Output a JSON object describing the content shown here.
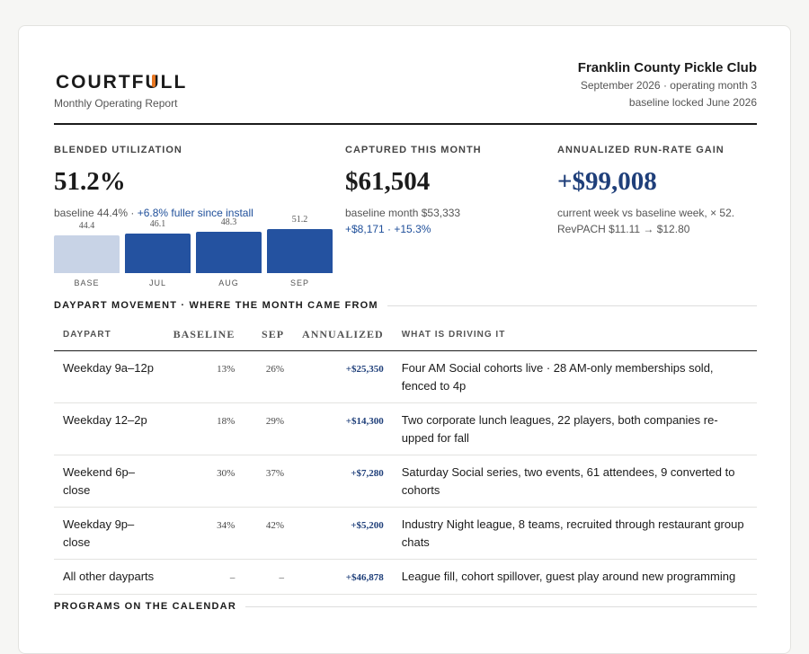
{
  "brand": {
    "logo_prefix": "COURTF",
    "logo_u": "U",
    "logo_suffix": "LL",
    "report_type": "Monthly Operating Report"
  },
  "club": {
    "name": "Franklin County Pickle Club",
    "period": "September 2026 · operating month 3",
    "baseline": "baseline locked June 2026"
  },
  "kpis": {
    "utilization": {
      "label": "BLENDED UTILIZATION",
      "value": "51.2%",
      "sub_prefix": "baseline 44.4% · ",
      "sub_accent": "+6.8% fuller since install"
    },
    "captured": {
      "label": "CAPTURED THIS MONTH",
      "value": "$61,504",
      "sub_line1": "baseline month $53,333",
      "sub_line2": "+$8,171 · +15.3%"
    },
    "runrate": {
      "label": "ANNUALIZED RUN-RATE GAIN",
      "value": "+$99,008",
      "sub_line1": "current week vs baseline week, × 52.",
      "sub_line2": "RevPACH $11.11 → $12.80"
    }
  },
  "chart_data": {
    "type": "bar",
    "categories": [
      "BASE",
      "JUL",
      "AUG",
      "SEP"
    ],
    "values": [
      44.4,
      46.1,
      48.3,
      51.2
    ],
    "value_labels": [
      "44.4",
      "46.1",
      "48.3",
      "51.2"
    ],
    "colors": [
      "#c8d3e6",
      "#2452a0",
      "#2452a0",
      "#2452a0"
    ]
  },
  "daypart": {
    "title": "DAYPART MOVEMENT · WHERE THE MONTH CAME FROM",
    "headers": [
      "DAYPART",
      "BASELINE",
      "SEP",
      "ANNUALIZED",
      "WHAT IS DRIVING IT"
    ],
    "rows": [
      {
        "daypart": "Weekday 9a–12p",
        "baseline": "13%",
        "sep": "26%",
        "annualized": "+$25,350",
        "driver": "Four AM Social cohorts live · 28 AM-only memberships sold, fenced to 4p"
      },
      {
        "daypart": "Weekday 12–2p",
        "baseline": "18%",
        "sep": "29%",
        "annualized": "+$14,300",
        "driver": "Two corporate lunch leagues, 22 players, both companies re-upped for fall"
      },
      {
        "daypart": "Weekend 6p–close",
        "baseline": "30%",
        "sep": "37%",
        "annualized": "+$7,280",
        "driver": "Saturday Social series, two events, 61 attendees, 9 converted to cohorts"
      },
      {
        "daypart": "Weekday 9p–close",
        "baseline": "34%",
        "sep": "42%",
        "annualized": "+$5,200",
        "driver": "Industry Night league, 8 teams, recruited through restaurant group chats"
      },
      {
        "daypart": "All other dayparts",
        "baseline": "–",
        "sep": "–",
        "annualized": "+$46,878",
        "driver": "League fill, cohort spillover, guest play around new programming"
      }
    ]
  },
  "programs": {
    "title": "PROGRAMS ON THE CALENDAR"
  }
}
